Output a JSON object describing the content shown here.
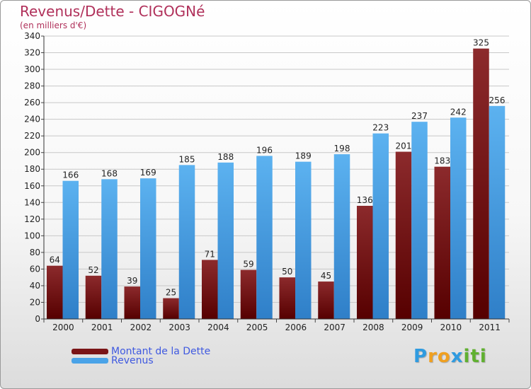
{
  "title": "Revenus/Dette - CIGOGNé",
  "subtitle": "(en milliers d'€)",
  "colors": {
    "dette": "#7a1416",
    "revenus": "#4aa3e8",
    "title": "#b0305a",
    "legend_text": "#3f59e0"
  },
  "logo": {
    "letters": [
      "P",
      "r",
      "o",
      "x",
      "i",
      "t",
      "i"
    ],
    "colors": [
      "#2f9be0",
      "#f0a020",
      "#f0a020",
      "#2f9be0",
      "#60b030",
      "#60b030",
      "#60b030"
    ]
  },
  "chart_data": {
    "type": "bar",
    "categories": [
      "2000",
      "2001",
      "2002",
      "2003",
      "2004",
      "2005",
      "2006",
      "2007",
      "2008",
      "2009",
      "2010",
      "2011"
    ],
    "series": [
      {
        "name": "Montant de la Dette",
        "values": [
          64,
          52,
          39,
          25,
          71,
          59,
          50,
          45,
          136,
          201,
          183,
          325
        ]
      },
      {
        "name": "Revenus",
        "values": [
          166,
          168,
          169,
          185,
          188,
          196,
          189,
          198,
          223,
          237,
          242,
          256
        ]
      }
    ],
    "ylim": [
      0,
      340
    ],
    "ytick_step": 20,
    "grid": true,
    "legend_position": "bottom-left"
  }
}
